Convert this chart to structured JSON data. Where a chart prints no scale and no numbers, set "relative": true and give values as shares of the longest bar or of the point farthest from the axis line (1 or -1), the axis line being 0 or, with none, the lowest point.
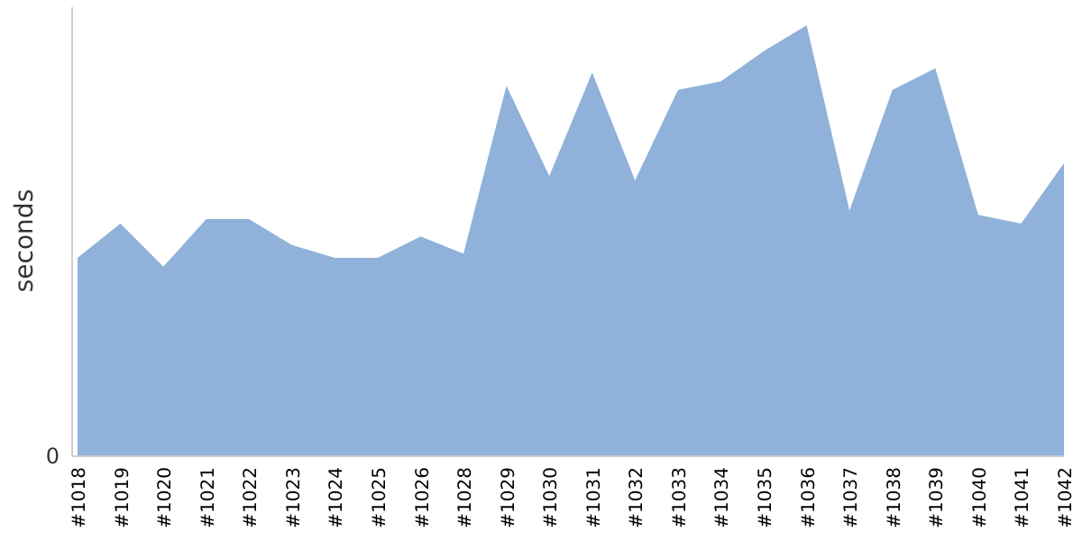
{
  "chart_data": {
    "type": "area",
    "relative": true,
    "ylabel": "seconds",
    "annotations": [
      "0"
    ],
    "categories": [
      "#1018",
      "#1019",
      "#1020",
      "#1021",
      "#1022",
      "#1023",
      "#1024",
      "#1025",
      "#1026",
      "#1028",
      "#1029",
      "#1030",
      "#1031",
      "#1032",
      "#1033",
      "#1034",
      "#1035",
      "#1036",
      "#1037",
      "#1038",
      "#1039",
      "#1040",
      "#1041",
      "#1042"
    ],
    "series": [
      {
        "color": "#8fb1da",
        "values": [
          0.46,
          0.54,
          0.44,
          0.55,
          0.55,
          0.49,
          0.46,
          0.46,
          0.51,
          0.47,
          0.86,
          0.65,
          0.89,
          0.64,
          0.85,
          0.87,
          0.94,
          1,
          0.57,
          0.85,
          0.9,
          0.56,
          0.54,
          0.68
        ]
      }
    ]
  }
}
